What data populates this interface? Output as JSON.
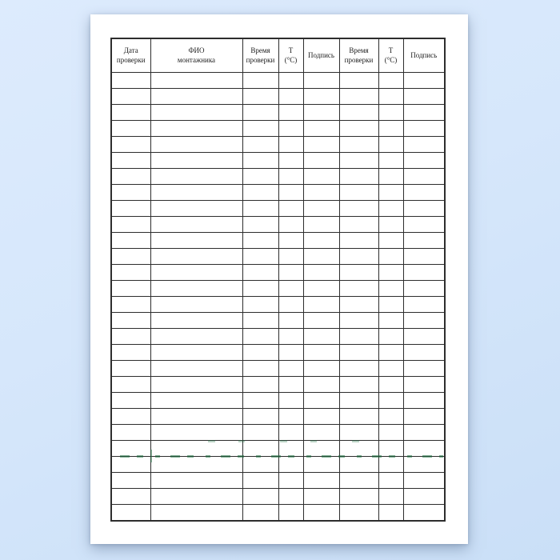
{
  "page": {
    "background_color": "#d6e7fb",
    "paper_color": "#ffffff"
  },
  "table": {
    "border_color": "#2d2d2d",
    "header_text_color": "#1c1c1c",
    "columns": [
      {
        "label": "Дата\nпроверки"
      },
      {
        "label": "ФИО\nмонтажника"
      },
      {
        "label": "Время\nпроверки"
      },
      {
        "label": "Т\n(°С)"
      },
      {
        "label": "Подпись"
      },
      {
        "label": "Время\nпроверки"
      },
      {
        "label": "Т\n(°С)"
      },
      {
        "label": "Подпись"
      }
    ],
    "empty_row_count": 28
  },
  "watermark": {
    "color": "#1a6e3e",
    "legible": false
  }
}
